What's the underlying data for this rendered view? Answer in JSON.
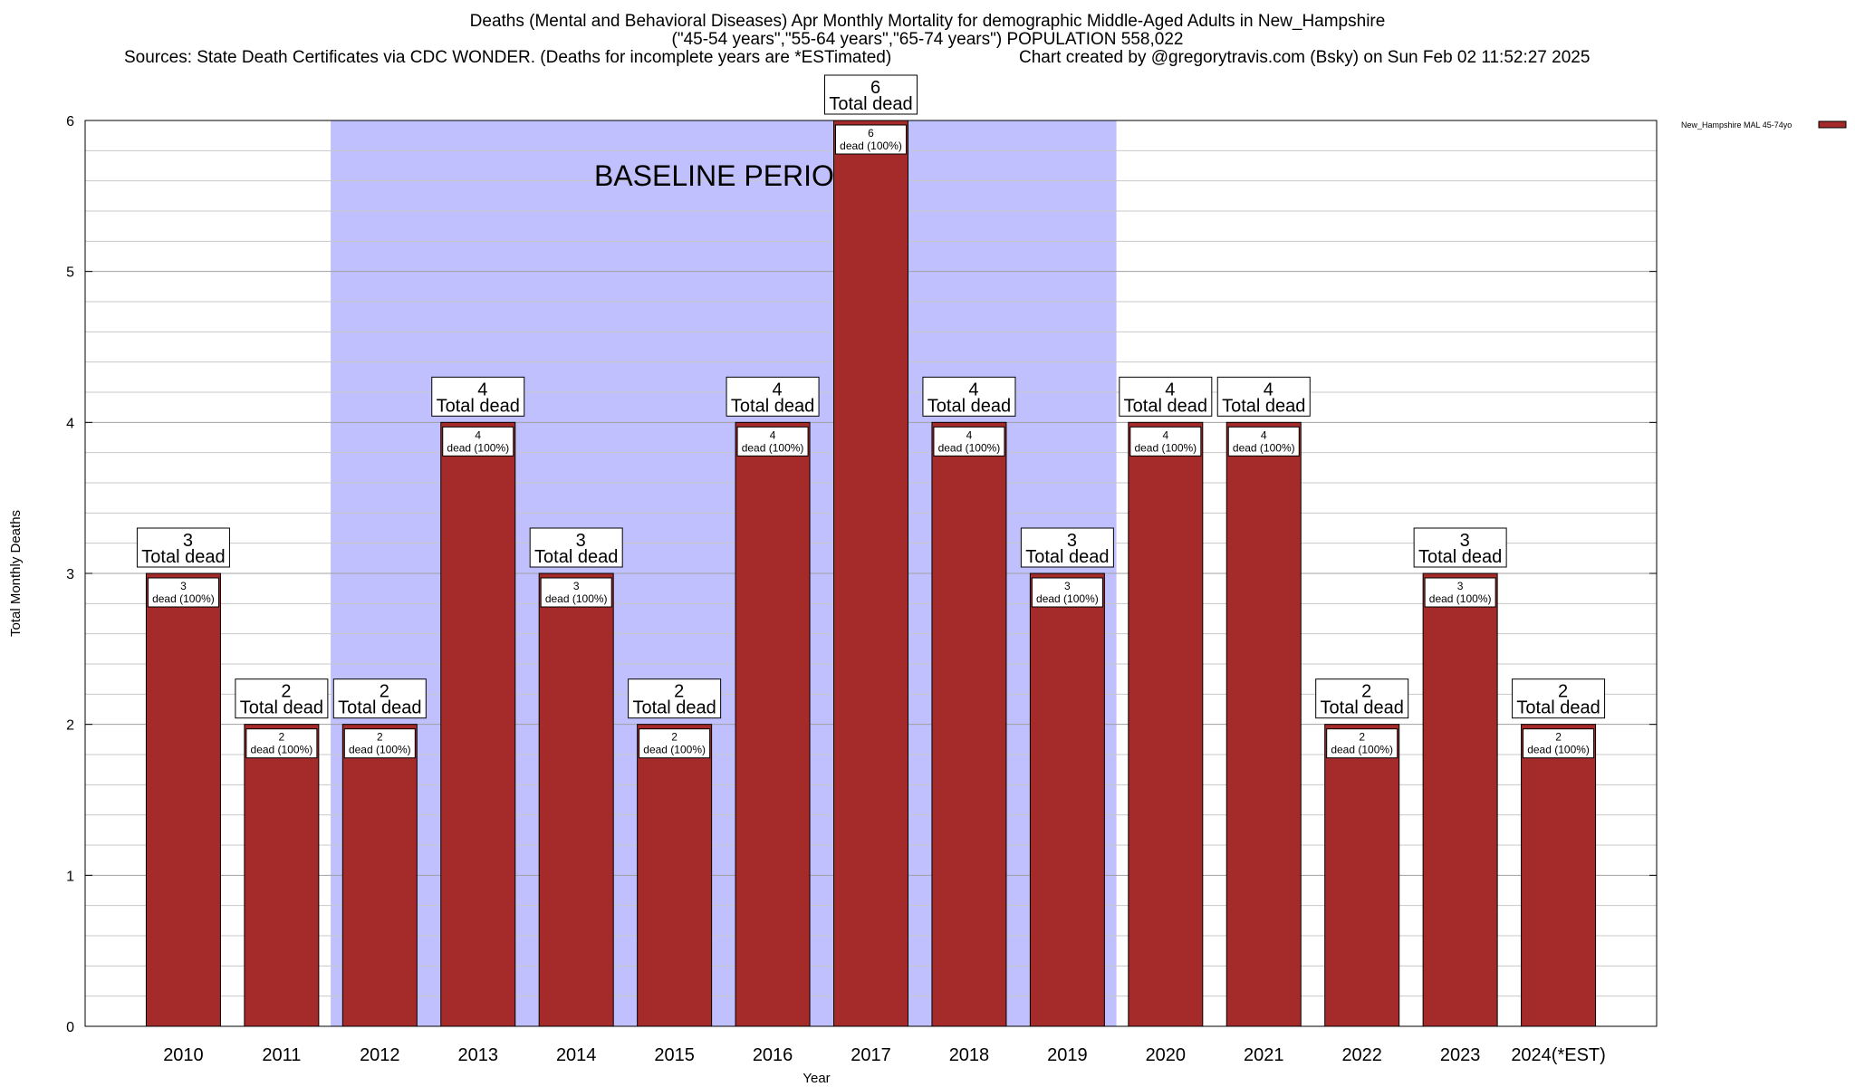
{
  "header": {
    "title_line1": "Deaths (Mental and Behavioral Diseases) Apr Monthly Mortality for demographic Middle-Aged Adults in New_Hampshire",
    "title_line2": "(\"45-54 years\",\"55-64 years\",\"65-74 years\") POPULATION 558,022",
    "sources": "Sources: State Death Certificates via CDC WONDER. (Deaths for incomplete years are *ESTimated)",
    "credit": "Chart created by @gregorytravis.com (Bsky) on Sun Feb 02 11:52:27 2025"
  },
  "chart_data": {
    "type": "bar",
    "xlabel": "Year",
    "ylabel": "Total Monthly Deaths",
    "ylim": [
      0,
      6
    ],
    "y_ticks": [
      0,
      1,
      2,
      3,
      4,
      5,
      6
    ],
    "grid": true,
    "categories": [
      "2010",
      "2011",
      "2012",
      "2013",
      "2014",
      "2015",
      "2016",
      "2017",
      "2018",
      "2019",
      "2020",
      "2021",
      "2022",
      "2023",
      "2024(*EST)"
    ],
    "series": [
      {
        "name": "New_Hampshire MAL 45-74yo",
        "color": "#a52a2a",
        "values": [
          3,
          2,
          2,
          4,
          3,
          2,
          4,
          6,
          4,
          3,
          4,
          4,
          2,
          3,
          2
        ]
      }
    ],
    "total_label_suffix": "Total dead",
    "segment_label_suffix": "dead (100%)",
    "baseline": {
      "label": "BASELINE PERIOD",
      "from": "2012",
      "to": "2019",
      "color": "#c0c0ff"
    },
    "legend_position": "top-right"
  }
}
